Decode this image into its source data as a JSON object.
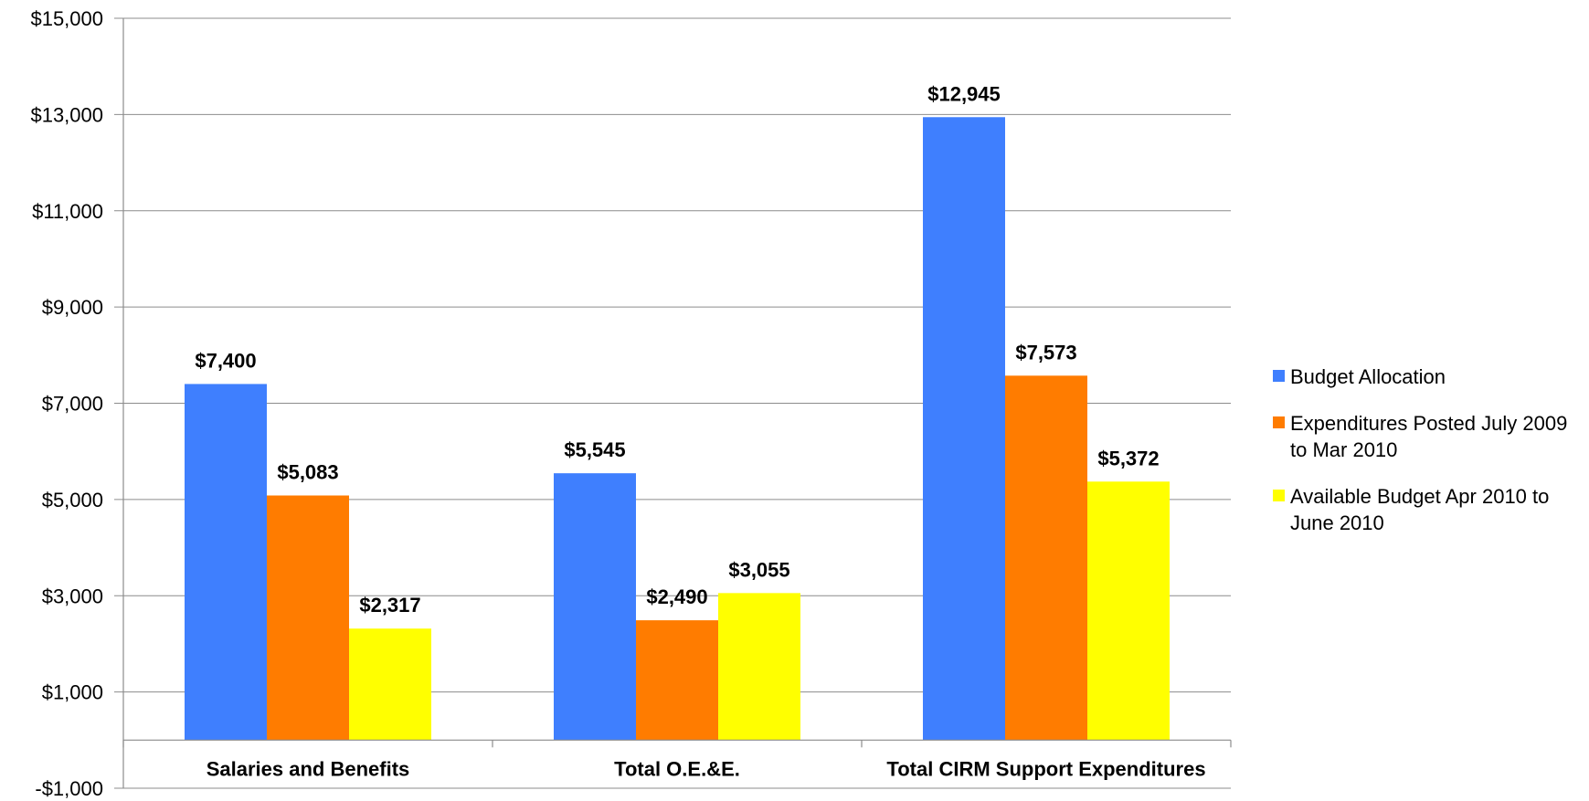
{
  "chart_data": {
    "type": "bar",
    "title": "",
    "xlabel": "",
    "ylabel": "",
    "categories": [
      "Salaries and Benefits",
      "Total O.E.&E.",
      "Total CIRM Support Expenditures"
    ],
    "series": [
      {
        "name": "Budget Allocation",
        "color": "#3f7ffe",
        "values": [
          7400,
          5545,
          12945
        ],
        "labels": [
          "$7,400",
          "$5,545",
          "$12,945"
        ]
      },
      {
        "name": "Expenditures Posted July 2009 to Mar 2010",
        "color": "#ff7c00",
        "values": [
          5083,
          2490,
          7573
        ],
        "labels": [
          "$5,083",
          "$2,490",
          "$7,573"
        ]
      },
      {
        "name": "Available Budget Apr 2010 to June 2010",
        "color": "#ffff00",
        "values": [
          2317,
          3055,
          5372
        ],
        "labels": [
          "$2,317",
          "$3,055",
          "$5,372"
        ]
      }
    ],
    "ylim": [
      -1000,
      15000
    ],
    "yticks": [
      -1000,
      1000,
      3000,
      5000,
      7000,
      9000,
      11000,
      13000,
      15000
    ],
    "ytick_labels": [
      "-$1,000",
      "$1,000",
      "$3,000",
      "$5,000",
      "$7,000",
      "$9,000",
      "$11,000",
      "$13,000",
      "$15,000"
    ],
    "category_axis_at": 0,
    "grid": true,
    "legend_position": "right"
  }
}
